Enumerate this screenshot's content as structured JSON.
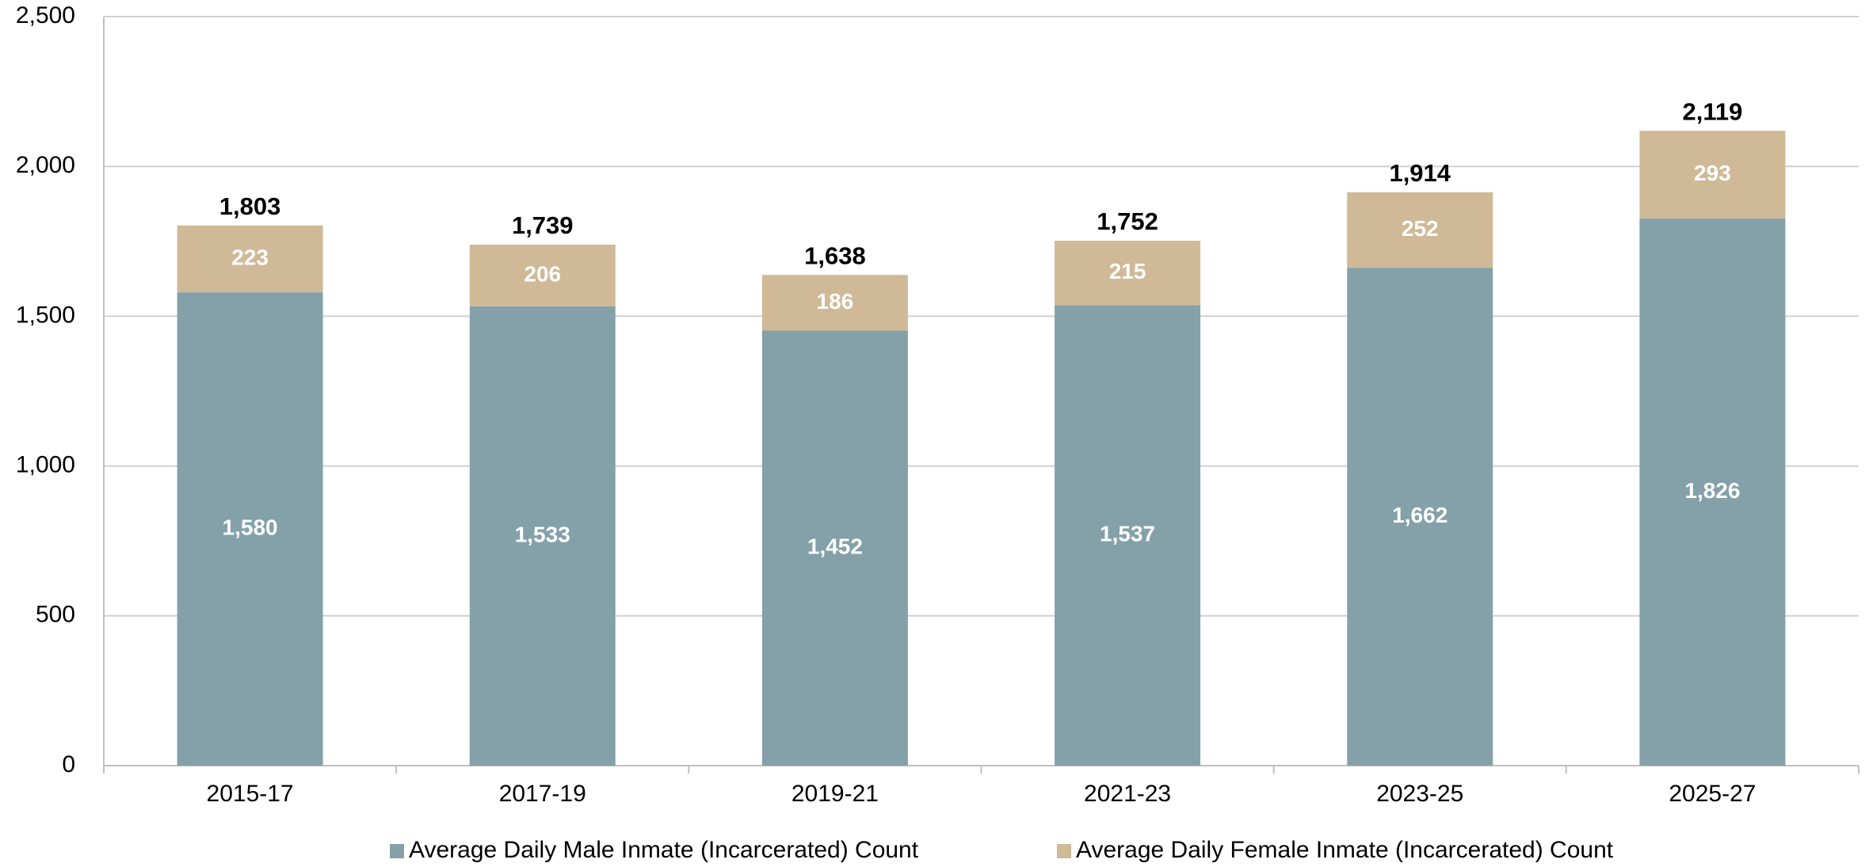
{
  "chart_data": {
    "type": "stacked_bar",
    "categories": [
      "2015-17",
      "2017-19",
      "2019-21",
      "2021-23",
      "2023-25",
      "2025-27"
    ],
    "series": [
      {
        "name": "Average Daily Male Inmate (Incarcerated) Count",
        "color": "#84a1aa",
        "values": [
          1580,
          1533,
          1452,
          1537,
          1662,
          1826
        ],
        "value_labels": [
          "1,580",
          "1,533",
          "1,452",
          "1,537",
          "1,662",
          "1,826"
        ]
      },
      {
        "name": "Average Daily Female Inmate (Incarcerated) Count",
        "color": "#cfb997",
        "values": [
          223,
          206,
          186,
          215,
          252,
          293
        ]
      }
    ],
    "totals": [
      1803,
      1739,
      1638,
      1752,
      1914,
      2119
    ],
    "total_labels": [
      "1,803",
      "1,739",
      "1,638",
      "1,752",
      "1,914",
      "2,119"
    ],
    "ylim": [
      0,
      2500
    ],
    "yticks": [
      0,
      500,
      {
        "value": 1000,
        "label": "1,000"
      },
      {
        "value": 1500,
        "label": "1,500"
      },
      {
        "value": 2000,
        "label": "2,000"
      },
      {
        "value": 2500,
        "label": "2,500"
      }
    ],
    "grid": true,
    "legend": "bottom"
  }
}
